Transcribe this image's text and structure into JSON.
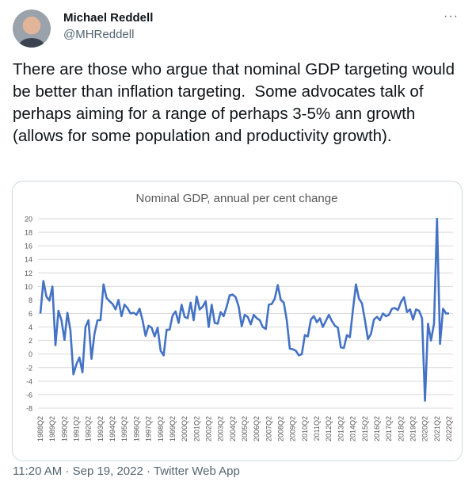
{
  "tweet": {
    "author_name": "Michael Reddell",
    "author_handle": "@MHReddell",
    "text": "There are those who argue that nominal GDP targeting would be better than inflation targeting.  Some advocates talk of perhaps aiming for a range of perhaps 3-5% ann growth (allows for some population and productivity growth).",
    "timestamp": "11:20 AM · Sep 19, 2022 · Twitter Web App",
    "more_icon": "more-horizontal-icon"
  },
  "chart_data": {
    "type": "line",
    "title": "Nominal GDP, annual per cent change",
    "ylim": [
      -8,
      20
    ],
    "yticks": [
      -8,
      -6,
      -4,
      -2,
      0,
      2,
      4,
      6,
      8,
      10,
      12,
      14,
      16,
      18,
      20
    ],
    "grid": true,
    "line_color": "#4472c4",
    "start": "1988Q2",
    "end": "2022Q2",
    "xtick_labels": [
      "1988Q2",
      "1989Q2",
      "1990Q2",
      "1991Q2",
      "1992Q2",
      "1993Q2",
      "1994Q2",
      "1995Q2",
      "1996Q2",
      "1997Q2",
      "1998Q2",
      "1999Q2",
      "2000Q2",
      "2001Q2",
      "2002Q2",
      "2003Q2",
      "2004Q2",
      "2005Q2",
      "2006Q2",
      "2007Q2",
      "2008Q2",
      "2009Q2",
      "2010Q2",
      "2011Q2",
      "2012Q2",
      "2013Q2",
      "2014Q2",
      "2015Q2",
      "2016Q2",
      "2017Q2",
      "2018Q2",
      "2019Q2",
      "2020Q2",
      "2021Q2",
      "2022Q2"
    ],
    "values": [
      6,
      10.8,
      8.5,
      7.9,
      10,
      1.3,
      6.4,
      5,
      2.1,
      6.1,
      3.5,
      -3,
      -1.5,
      -0.5,
      -2.7,
      4,
      5,
      -0.7,
      3,
      5,
      5,
      10.3,
      8.3,
      7.8,
      7.4,
      6.6,
      8,
      5.6,
      7.3,
      6.8,
      6,
      6.1,
      5.8,
      6.7,
      5,
      2.7,
      4.2,
      3.9,
      2.6,
      3.9,
      0.5,
      -0.2,
      3.6,
      3.6,
      5.7,
      6.3,
      4.6,
      7.3,
      5.5,
      5.3,
      7.6,
      5,
      8.5,
      6.6,
      7,
      7.8,
      4,
      7.3,
      4.6,
      4.5,
      6.2,
      5.6,
      7,
      8.7,
      8.8,
      8.4,
      7,
      4.1,
      5.8,
      5.5,
      4.4,
      5.8,
      5.3,
      5,
      4,
      3.7,
      7.3,
      7.4,
      8.2,
      10.2,
      8,
      7.6,
      5,
      0.8,
      0.7,
      0.5,
      -0.2,
      0,
      2.8,
      2.6,
      5.1,
      5.6,
      4.7,
      5.3,
      4,
      4.9,
      5.8,
      4.9,
      4.2,
      3.9,
      1,
      0.9,
      2.8,
      2.5,
      6.5,
      10.3,
      8.2,
      7.5,
      5,
      2.2,
      3,
      5.1,
      5.5,
      5,
      6,
      5.6,
      5.8,
      6.7,
      6.8,
      6.5,
      7.7,
      8.4,
      6.2,
      6.6,
      5.1,
      6.6,
      6.4,
      5.3,
      -6.9,
      4.5,
      2,
      4.5,
      20,
      1.5,
      6.7,
      6,
      6
    ]
  }
}
